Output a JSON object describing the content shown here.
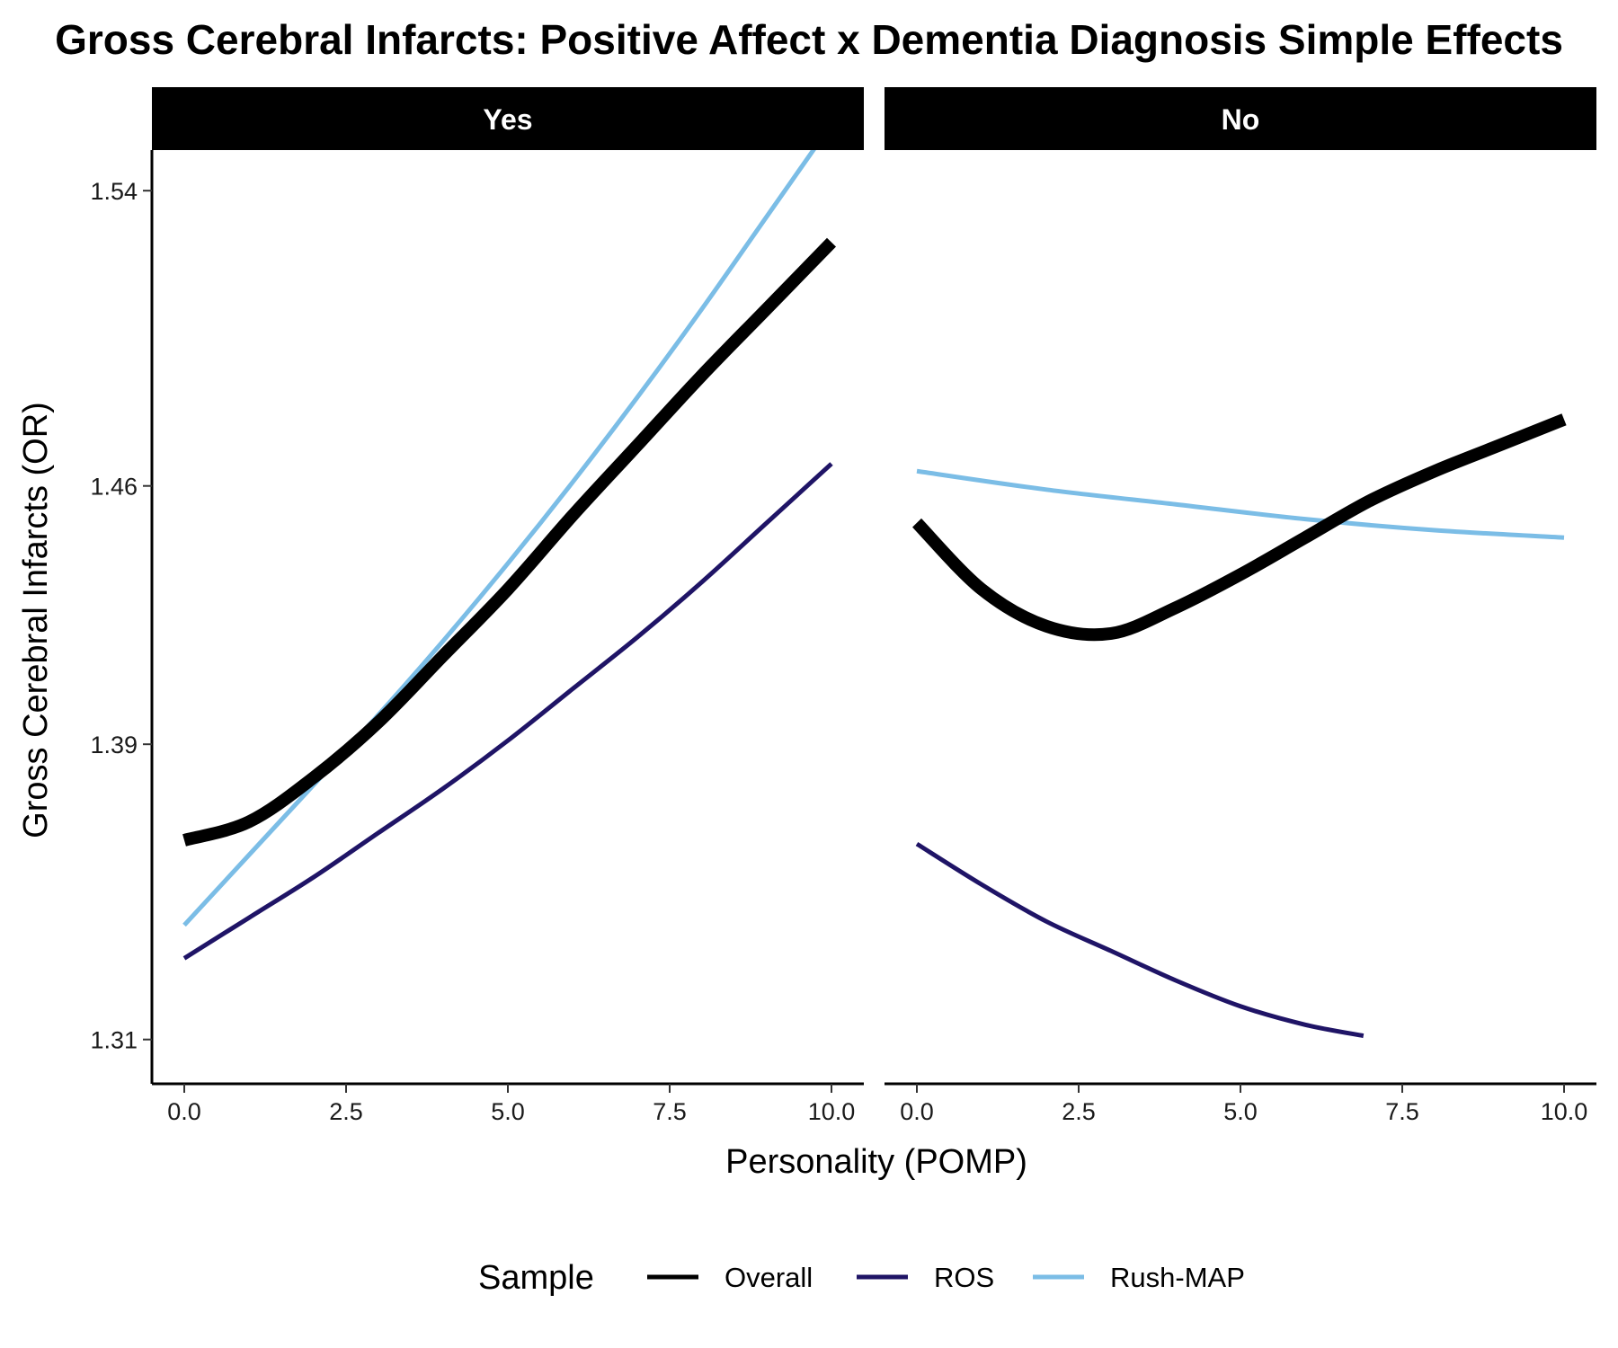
{
  "chart_data": {
    "type": "line",
    "title": "Gross Cerebral Infarcts: Positive Affect x Dementia Diagnosis Simple Effects",
    "xlabel": "Personality (POMP)",
    "ylabel": "Gross Cerebral Infarcts (OR)",
    "xlim": [
      -0.5,
      10.5
    ],
    "ylim": [
      1.298,
      1.551
    ],
    "x_ticks": [
      0,
      2.5,
      5,
      7.5,
      10
    ],
    "x_tick_labels": [
      "0.0",
      "2.5",
      "5.0",
      "7.5",
      "10.0"
    ],
    "y_ticks": [
      1.31,
      1.39,
      1.46,
      1.54
    ],
    "y_tick_labels": [
      "1.31",
      "1.39",
      "1.46",
      "1.54"
    ],
    "grid": false,
    "legend": {
      "title": "Sample",
      "position": "bottom",
      "items": [
        {
          "name": "Overall",
          "color": "#000000"
        },
        {
          "name": "ROS",
          "color": "#1f1466"
        },
        {
          "name": "Rush-MAP",
          "color": "#7bbde6"
        }
      ]
    },
    "panels": [
      {
        "label": "Yes",
        "series": [
          {
            "name": "Overall",
            "color": "#000000",
            "weight": "thick",
            "x": [
              0,
              1,
              2,
              3,
              4,
              5,
              6,
              7,
              8,
              9,
              10
            ],
            "y": [
              1.364,
              1.369,
              1.381,
              1.396,
              1.414,
              1.432,
              1.452,
              1.471,
              1.49,
              1.508,
              1.526
            ]
          },
          {
            "name": "ROS",
            "color": "#1f1466",
            "weight": "normal",
            "x": [
              0,
              1,
              2,
              3,
              4,
              5,
              6,
              7,
              8,
              9,
              10
            ],
            "y": [
              1.332,
              1.343,
              1.354,
              1.366,
              1.378,
              1.391,
              1.405,
              1.419,
              1.434,
              1.45,
              1.466
            ]
          },
          {
            "name": "Rush-MAP",
            "color": "#7bbde6",
            "weight": "normal",
            "x": [
              0,
              1,
              2,
              3,
              4,
              5,
              6,
              7,
              8,
              9,
              10
            ],
            "y": [
              1.341,
              1.36,
              1.379,
              1.398,
              1.418,
              1.439,
              1.461,
              1.484,
              1.508,
              1.533,
              1.558
            ]
          }
        ]
      },
      {
        "label": "No",
        "series": [
          {
            "name": "Overall",
            "color": "#000000",
            "weight": "thick",
            "x": [
              0,
              1,
              2,
              3,
              4,
              5,
              6,
              7,
              8,
              9,
              10
            ],
            "y": [
              1.45,
              1.432,
              1.422,
              1.42,
              1.427,
              1.436,
              1.446,
              1.456,
              1.464,
              1.471,
              1.478
            ]
          },
          {
            "name": "ROS",
            "color": "#1f1466",
            "weight": "normal",
            "x": [
              0,
              1,
              2,
              3,
              4,
              5,
              6,
              6.9
            ],
            "y": [
              1.363,
              1.352,
              1.342,
              1.334,
              1.326,
              1.319,
              1.314,
              1.311
            ]
          },
          {
            "name": "Rush-MAP",
            "color": "#7bbde6",
            "weight": "normal",
            "x": [
              0,
              2,
              4,
              6,
              8,
              10
            ],
            "y": [
              1.464,
              1.459,
              1.455,
              1.451,
              1.448,
              1.446
            ]
          }
        ]
      }
    ]
  }
}
